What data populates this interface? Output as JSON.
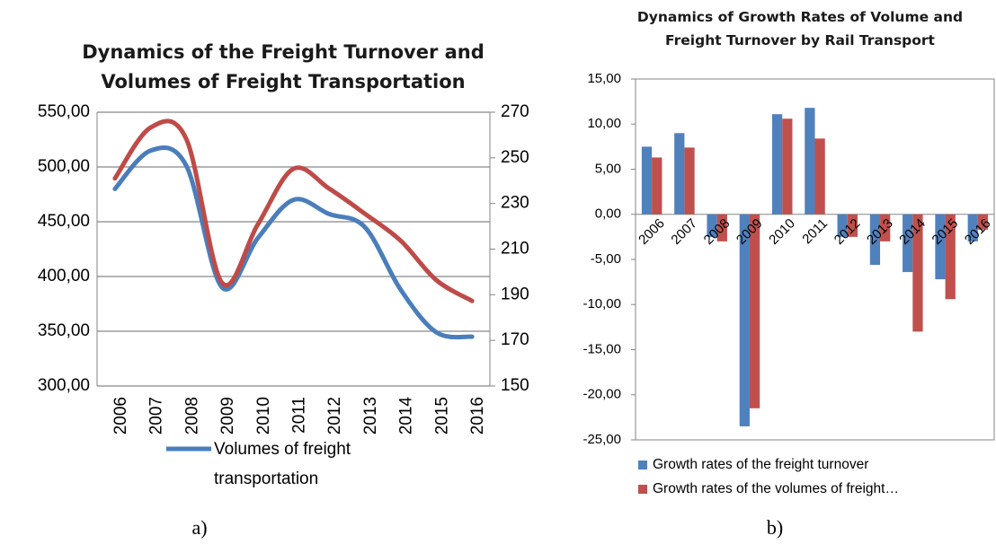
{
  "chart_data": [
    {
      "type": "line",
      "title": "Dynamics of the Freight Turnover and Volumes of Freight Transportation",
      "categories": [
        "2006",
        "2007",
        "2008",
        "2009",
        "2010",
        "2011",
        "2012",
        "2013",
        "2014",
        "2015",
        "2016"
      ],
      "series": [
        {
          "name": "Volumes of freight transportation",
          "color": "#4a7ebb",
          "values": [
            480,
            515,
            501,
            390,
            435,
            470,
            457,
            445,
            388,
            349,
            345
          ]
        },
        {
          "color": "#be4b48",
          "axis": "y2",
          "values": [
            241,
            263.3,
            258.2,
            195.2,
            220.8,
            245.2,
            236.5,
            225.5,
            213.7,
            196.4,
            187.3
          ]
        }
      ],
      "ylim": [
        300,
        550
      ],
      "yticks": [
        {
          "value": 300,
          "label": "300,00"
        },
        {
          "value": 350,
          "label": "350,00"
        },
        {
          "value": 400,
          "label": "400,00"
        },
        {
          "value": 450,
          "label": "450,00"
        },
        {
          "value": 500,
          "label": "500,00"
        },
        {
          "value": 550,
          "label": "550,00"
        }
      ],
      "y2lim": [
        150,
        270
      ],
      "y2ticks": [
        150,
        170,
        190,
        210,
        230,
        250,
        270
      ],
      "grid": true,
      "legend": "bottom"
    },
    {
      "type": "bar",
      "title": "Dynamics of Growth Rates of Volume and Freight Turnover by Rail Transport",
      "categories": [
        "2006",
        "2007",
        "2008",
        "2009",
        "2010",
        "2011",
        "2012",
        "2013",
        "2014",
        "2015",
        "2016"
      ],
      "series": [
        {
          "name": "Growth rates of the freight turnover",
          "color": "#4f81bd",
          "values": [
            7.5,
            9,
            -2.5,
            -23.5,
            11.1,
            11.8,
            -2.5,
            -5.6,
            -6.4,
            -7.2,
            -3
          ]
        },
        {
          "name": "Growth rates of the volumes of freight…",
          "color": "#c0504d",
          "values": [
            6.3,
            7.4,
            -3,
            -21.5,
            10.6,
            8.4,
            -2.5,
            -3,
            -13,
            -9.4,
            -1.7
          ]
        }
      ],
      "ylim": [
        -25,
        15
      ],
      "yticks": [
        {
          "value": -25,
          "label": "-25,00"
        },
        {
          "value": -20,
          "label": "-20,00"
        },
        {
          "value": -15,
          "label": "-15,00"
        },
        {
          "value": -10,
          "label": "-10,00"
        },
        {
          "value": -5,
          "label": "-5,00"
        },
        {
          "value": 0,
          "label": "0,00"
        },
        {
          "value": 5,
          "label": "5,00"
        },
        {
          "value": 10,
          "label": "10,00"
        },
        {
          "value": 15,
          "label": "15,00"
        }
      ],
      "grid": false,
      "legend": "bottom"
    }
  ],
  "captions": [
    "a)",
    "b)"
  ]
}
